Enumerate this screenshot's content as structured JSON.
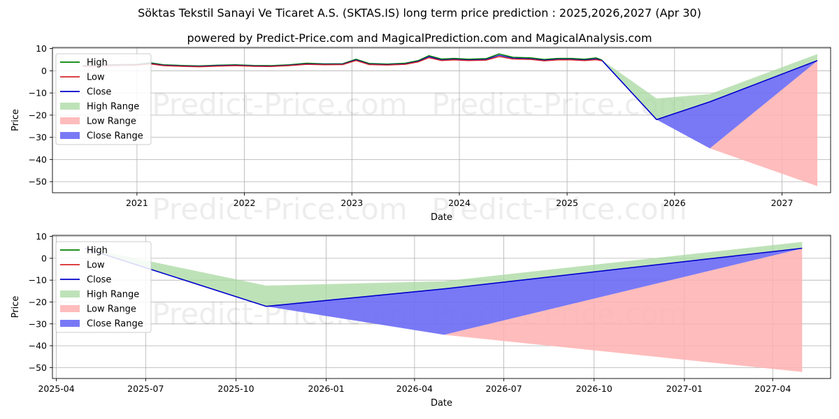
{
  "header": {
    "title": "Söktas Tekstil Sanayi Ve Ticaret A.S. (SKTAS.IS) long term price prediction : 2025,2026,2027 (Apr 30)",
    "subtitle": "powered by Predict-Price.com and MagicalPrediction.com and MagicalAnalysis.com"
  },
  "watermark": "Predict-Price.com",
  "colors": {
    "high": "#008000",
    "low": "#d62728",
    "close": "#0000cc",
    "high_range": "#a8d8a0",
    "low_range": "#ffb0b0",
    "close_range": "#6a6af5",
    "grid": "#b0b0b0"
  },
  "legend": [
    "High",
    "Low",
    "Close",
    "High Range",
    "Low Range",
    "Close Range"
  ],
  "chart_data": [
    {
      "type": "line",
      "title": "",
      "xlabel": "Date",
      "ylabel": "Price",
      "xlim": [
        "2020-03-20",
        "2027-06-15"
      ],
      "ylim": [
        -55,
        10.5
      ],
      "xticks": [
        {
          "date": "2021-01-01",
          "label": "2021"
        },
        {
          "date": "2022-01-01",
          "label": "2022"
        },
        {
          "date": "2023-01-01",
          "label": "2023"
        },
        {
          "date": "2024-01-01",
          "label": "2024"
        },
        {
          "date": "2025-01-01",
          "label": "2025"
        },
        {
          "date": "2026-01-01",
          "label": "2026"
        },
        {
          "date": "2027-01-01",
          "label": "2027"
        }
      ],
      "yticks": [
        10,
        0,
        -10,
        -20,
        -30,
        -40,
        -50
      ],
      "grid": true,
      "legend_position": "upper-left",
      "history": {
        "dates": [
          "2020-07-01",
          "2020-09-01",
          "2020-11-01",
          "2021-01-01",
          "2021-02-15",
          "2021-04-01",
          "2021-06-01",
          "2021-08-01",
          "2021-10-01",
          "2021-12-01",
          "2022-02-01",
          "2022-04-01",
          "2022-06-01",
          "2022-08-01",
          "2022-10-01",
          "2022-12-01",
          "2023-01-15",
          "2023-03-01",
          "2023-05-01",
          "2023-07-01",
          "2023-08-15",
          "2023-09-20",
          "2023-11-01",
          "2023-12-15",
          "2024-02-01",
          "2024-04-01",
          "2024-05-15",
          "2024-07-01",
          "2024-09-01",
          "2024-10-15",
          "2024-12-01",
          "2025-01-15",
          "2025-03-01",
          "2025-04-10",
          "2025-04-30"
        ],
        "high": [
          2.3,
          2.6,
          2.8,
          2.9,
          3.6,
          2.7,
          2.4,
          2.2,
          2.5,
          2.7,
          2.4,
          2.3,
          2.7,
          3.4,
          3.1,
          3.2,
          5.2,
          3.3,
          3.0,
          3.4,
          4.6,
          6.8,
          5.3,
          5.6,
          5.2,
          5.5,
          7.6,
          6.1,
          5.8,
          5.1,
          5.6,
          5.6,
          5.2,
          5.8,
          4.8
        ],
        "low": [
          1.9,
          2.2,
          2.4,
          2.5,
          3.1,
          2.3,
          2.0,
          1.8,
          2.1,
          2.3,
          2.0,
          1.9,
          2.3,
          2.9,
          2.7,
          2.8,
          4.6,
          2.8,
          2.6,
          2.9,
          4.0,
          5.9,
          4.6,
          4.9,
          4.6,
          4.8,
          6.4,
          5.3,
          5.1,
          4.5,
          4.9,
          4.9,
          4.6,
          5.0,
          4.5
        ],
        "close": [
          2.1,
          2.4,
          2.6,
          2.7,
          3.3,
          2.5,
          2.2,
          2.0,
          2.3,
          2.5,
          2.2,
          2.1,
          2.5,
          3.1,
          2.9,
          3.0,
          4.9,
          3.0,
          2.8,
          3.1,
          4.3,
          6.4,
          4.9,
          5.2,
          4.9,
          5.1,
          7.0,
          5.7,
          5.4,
          4.8,
          5.2,
          5.2,
          4.9,
          5.4,
          4.6
        ]
      },
      "forecast": {
        "dates": [
          "2025-04-30",
          "2025-11-01",
          "2026-05-01",
          "2027-05-01"
        ],
        "high_range": {
          "upper": [
            4.8,
            -12.5,
            -10.5,
            7.5
          ],
          "lower": [
            4.6,
            -22.0,
            -14.0,
            4.6
          ]
        },
        "low_range": {
          "upper": [
            4.6,
            -22.0,
            -35.0,
            4.5
          ],
          "lower": [
            4.6,
            -22.0,
            -35.0,
            -52.0
          ]
        },
        "close_range": {
          "upper": [
            4.6,
            -22.0,
            -14.0,
            4.6
          ],
          "lower": [
            4.6,
            -22.0,
            -35.0,
            4.5
          ]
        },
        "close": [
          4.6,
          -22.0,
          -14.0,
          4.6
        ]
      }
    },
    {
      "type": "line",
      "title": "",
      "xlabel": "Date",
      "ylabel": "Price",
      "xlim": [
        "2025-03-28",
        "2027-05-30"
      ],
      "ylim": [
        -55,
        10.5
      ],
      "xticks": [
        {
          "date": "2025-04-01",
          "label": "2025-04"
        },
        {
          "date": "2025-07-01",
          "label": "2025-07"
        },
        {
          "date": "2025-10-01",
          "label": "2025-10"
        },
        {
          "date": "2026-01-01",
          "label": "2026-01"
        },
        {
          "date": "2026-04-01",
          "label": "2026-04"
        },
        {
          "date": "2026-07-01",
          "label": "2026-07"
        },
        {
          "date": "2026-10-01",
          "label": "2026-10"
        },
        {
          "date": "2027-01-01",
          "label": "2027-01"
        },
        {
          "date": "2027-04-01",
          "label": "2027-04"
        }
      ],
      "yticks": [
        10,
        0,
        -10,
        -20,
        -30,
        -40,
        -50
      ],
      "grid": true,
      "legend_position": "upper-left",
      "forecast": {
        "dates": [
          "2025-04-30",
          "2025-11-01",
          "2026-05-01",
          "2027-05-01"
        ],
        "high_range": {
          "upper": [
            4.8,
            -12.5,
            -10.5,
            7.5
          ],
          "lower": [
            4.6,
            -22.0,
            -14.0,
            4.6
          ]
        },
        "low_range": {
          "upper": [
            4.6,
            -22.0,
            -35.0,
            4.5
          ],
          "lower": [
            4.6,
            -22.0,
            -35.0,
            -52.0
          ]
        },
        "close_range": {
          "upper": [
            4.6,
            -22.0,
            -14.0,
            4.6
          ],
          "lower": [
            4.6,
            -22.0,
            -35.0,
            4.5
          ]
        },
        "close": [
          4.6,
          -22.0,
          -14.0,
          4.6
        ]
      }
    }
  ]
}
